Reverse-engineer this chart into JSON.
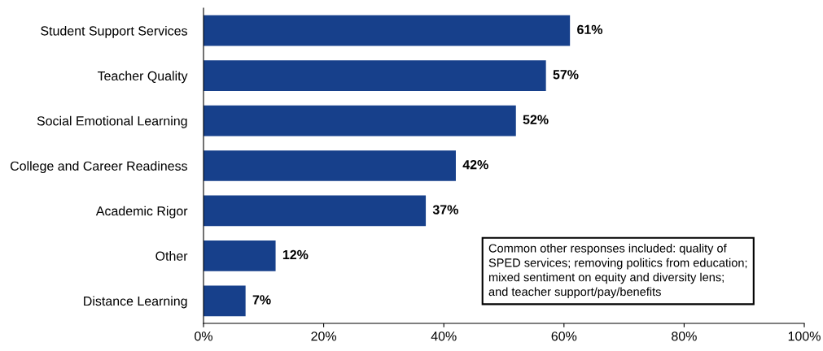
{
  "chart_data": {
    "type": "bar",
    "orientation": "horizontal",
    "categories": [
      "Student Support Services",
      "Teacher Quality",
      "Social Emotional Learning",
      "College and Career Readiness",
      "Academic Rigor",
      "Other",
      "Distance Learning"
    ],
    "values": [
      61,
      57,
      52,
      42,
      37,
      12,
      7
    ],
    "value_labels": [
      "61%",
      "57%",
      "52%",
      "42%",
      "37%",
      "12%",
      "7%"
    ],
    "color": "#17408b",
    "xlim": [
      0,
      100
    ],
    "xticks": [
      {
        "value": 0,
        "label": "0%"
      },
      {
        "value": 20,
        "label": "20%"
      },
      {
        "value": 40,
        "label": "40%"
      },
      {
        "value": 60,
        "label": "60%"
      },
      {
        "value": 80,
        "label": "80%"
      },
      {
        "value": 100,
        "label": "100%"
      }
    ],
    "grid": false,
    "annotations": [
      "Common other responses included: quality of\nSPED services; removing politics from education;\nmixed sentiment on equity and diversity lens;\nand teacher support/pay/benefits"
    ]
  }
}
